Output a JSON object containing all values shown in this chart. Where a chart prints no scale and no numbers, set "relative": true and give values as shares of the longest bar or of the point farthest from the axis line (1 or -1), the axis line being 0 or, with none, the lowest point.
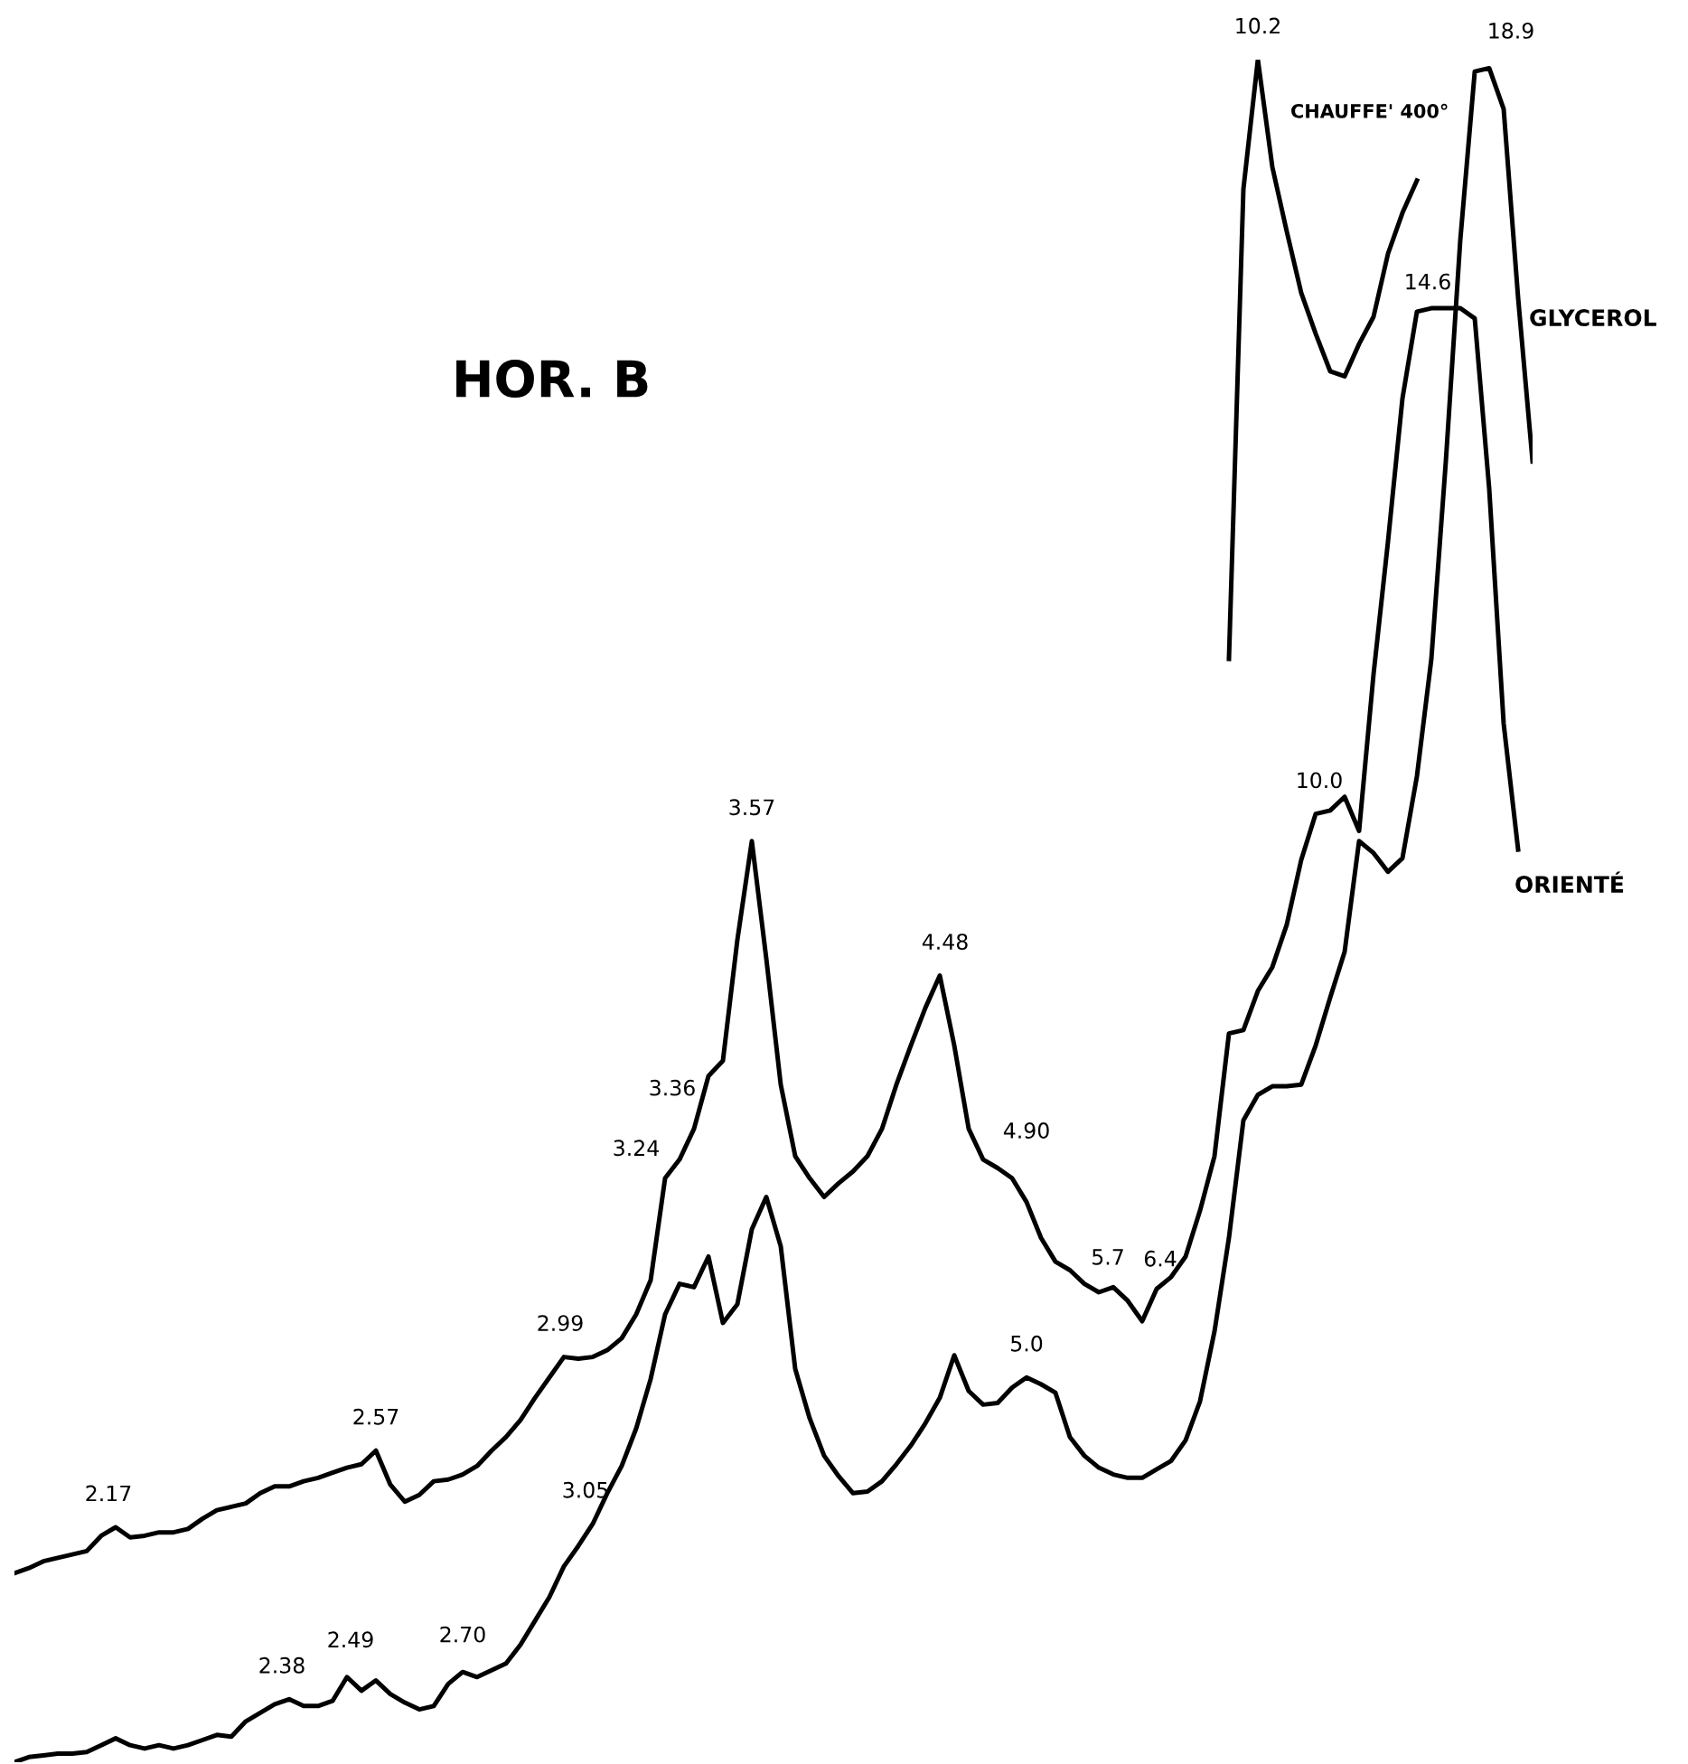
{
  "chart_data": {
    "type": "line",
    "title": "HOR. B",
    "relative": true,
    "legend": false,
    "categories": [
      null,
      null,
      null,
      null,
      null,
      null,
      null,
      null,
      null,
      null,
      null,
      null,
      null,
      null,
      null,
      null,
      null,
      null,
      null,
      null,
      null,
      null,
      null,
      null,
      null,
      null,
      null,
      null,
      null,
      null,
      null,
      null,
      null,
      null,
      null,
      null,
      null,
      null,
      null,
      null,
      null,
      null,
      null,
      null,
      null,
      null,
      null,
      null,
      null,
      null,
      null,
      null,
      null,
      null,
      null,
      null,
      null,
      null,
      null,
      null,
      null,
      null,
      null,
      null,
      null,
      null,
      null,
      null,
      null,
      null,
      null,
      null,
      null,
      null,
      null,
      null,
      null,
      null,
      null,
      null,
      null,
      null,
      null,
      null,
      null,
      null,
      null,
      null,
      null,
      null,
      null,
      null,
      null,
      null,
      null,
      null,
      null,
      null,
      null,
      null,
      null,
      null,
      null,
      null,
      null,
      null
    ],
    "series": [
      {
        "name": "ORIENTÉ",
        "color": "#000000",
        "values": [
          0.111,
          0.114,
          0.118,
          0.12,
          0.122,
          0.124,
          0.133,
          0.138,
          0.132,
          0.133,
          0.135,
          0.135,
          0.137,
          0.143,
          0.148,
          0.15,
          0.152,
          0.158,
          0.162,
          0.162,
          0.165,
          0.167,
          0.17,
          0.173,
          0.175,
          0.183,
          0.163,
          0.153,
          0.157,
          0.165,
          0.166,
          0.169,
          0.174,
          0.183,
          0.191,
          0.201,
          0.214,
          0.226,
          0.238,
          0.237,
          0.238,
          0.242,
          0.249,
          0.263,
          0.283,
          0.343,
          0.354,
          0.372,
          0.403,
          0.412,
          0.483,
          0.541,
          0.472,
          0.398,
          0.356,
          0.343,
          0.332,
          0.34,
          0.347,
          0.356,
          0.372,
          0.398,
          0.421,
          0.443,
          0.462,
          0.421,
          0.372,
          0.354,
          0.349,
          0.343,
          0.329,
          0.308,
          0.294,
          0.289,
          0.281,
          0.276,
          0.279,
          0.271,
          0.259,
          0.278,
          0.285,
          0.297,
          0.324,
          0.356,
          0.428,
          0.43,
          0.453,
          0.467,
          0.492,
          0.53,
          0.557,
          0.559,
          0.567,
          0.547,
          0.639,
          0.717,
          0.801,
          0.852,
          0.854,
          0.854,
          0.854,
          0.848,
          0.748,
          0.61,
          0.536,
          null
        ]
      },
      {
        "name": "GLYCEROL",
        "color": "#000000",
        "values": [
          0.0,
          0.003,
          0.004,
          0.005,
          0.005,
          0.006,
          0.01,
          0.014,
          0.01,
          0.008,
          0.01,
          0.008,
          0.01,
          0.013,
          0.016,
          0.015,
          0.024,
          0.029,
          0.034,
          0.037,
          0.033,
          0.033,
          0.036,
          0.05,
          0.042,
          0.048,
          0.04,
          0.035,
          0.031,
          0.033,
          0.046,
          0.053,
          0.05,
          0.054,
          0.058,
          0.069,
          0.083,
          0.097,
          0.115,
          0.127,
          0.14,
          0.158,
          0.174,
          0.196,
          0.225,
          0.263,
          0.281,
          0.279,
          0.297,
          0.258,
          0.269,
          0.313,
          0.332,
          0.303,
          0.231,
          0.202,
          0.18,
          0.168,
          0.158,
          0.159,
          0.165,
          0.175,
          0.186,
          0.199,
          0.214,
          0.239,
          0.218,
          0.21,
          0.211,
          0.22,
          0.226,
          0.222,
          0.217,
          0.191,
          0.18,
          0.173,
          0.169,
          0.167,
          0.167,
          0.172,
          0.177,
          0.189,
          0.212,
          0.253,
          0.308,
          0.377,
          0.392,
          0.397,
          0.397,
          0.398,
          0.421,
          0.449,
          0.476,
          0.541,
          0.534,
          0.523,
          0.531,
          0.579,
          0.648,
          0.764,
          0.894,
          0.993,
          0.995,
          0.971,
          0.86,
          0.764
        ]
      },
      {
        "name": "CHAUFFE' 400°",
        "color": "#000000",
        "values": [
          null,
          null,
          null,
          null,
          null,
          null,
          null,
          null,
          null,
          null,
          null,
          null,
          null,
          null,
          null,
          null,
          null,
          null,
          null,
          null,
          null,
          null,
          null,
          null,
          null,
          null,
          null,
          null,
          null,
          null,
          null,
          null,
          null,
          null,
          null,
          null,
          null,
          null,
          null,
          null,
          null,
          null,
          null,
          null,
          null,
          null,
          null,
          null,
          null,
          null,
          null,
          null,
          null,
          null,
          null,
          null,
          null,
          null,
          null,
          null,
          null,
          null,
          null,
          null,
          null,
          null,
          null,
          null,
          null,
          null,
          null,
          null,
          null,
          null,
          null,
          null,
          null,
          null,
          null,
          null,
          null,
          null,
          null,
          null,
          0.648,
          0.924,
          1.0,
          0.937,
          0.899,
          0.863,
          0.839,
          0.817,
          0.814,
          0.833,
          0.849,
          0.886,
          0.91,
          0.929,
          null,
          null,
          null,
          null,
          null,
          null,
          null,
          null
        ]
      }
    ],
    "annotations": [
      "10.2",
      "18.9",
      "14.6",
      "10.0",
      "3.57",
      "4.48",
      "3.36",
      "3.24",
      "4.90",
      "5.7",
      "6.4",
      "2.99",
      "2.57",
      "2.17",
      "5.0",
      "3.05",
      "2.38",
      "2.49",
      "2.70"
    ]
  }
}
